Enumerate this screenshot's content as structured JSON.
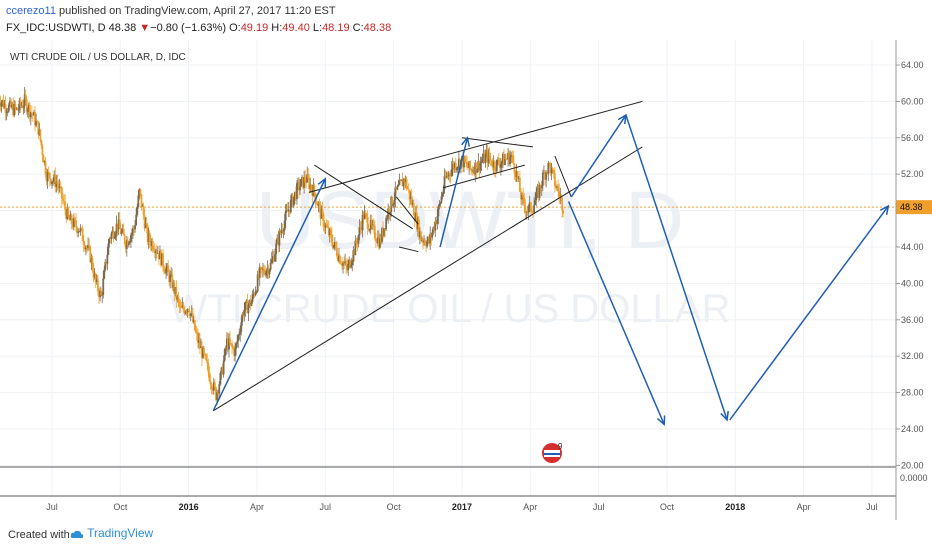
{
  "header": {
    "author": "ccerezo11",
    "published_text": " published on TradingView.com, April 27, 2017 11:20 EST",
    "symbol_line": "FX_IDC:USDWTI, D 48.38",
    "change_arrow": "▼",
    "change_text": "−0.80 (−1.63%)",
    "o_label": "O:",
    "o_val": "49.19",
    "h_label": "H:",
    "h_val": "49.40",
    "l_label": "L:",
    "l_val": "48.19",
    "c_label": "C:",
    "c_val": "48.38"
  },
  "chart_data": {
    "type": "candlestick",
    "title": "WTI CRUDE OIL / US DOLLAR, D, IDC",
    "watermark_symbol": "USDWTI, D",
    "watermark_name": "WTI CRUDE OIL / US DOLLAR",
    "ylim": [
      18,
      66
    ],
    "y_ticks": [
      "64.00",
      "60.00",
      "56.00",
      "52.00",
      "48.00",
      "44.00",
      "40.00",
      "36.00",
      "32.00",
      "28.00",
      "24.00",
      "20.00"
    ],
    "x_ticks": [
      {
        "label": "Jul",
        "t": 2015.5
      },
      {
        "label": "Oct",
        "t": 2015.75
      },
      {
        "label": "2016",
        "t": 2016.0
      },
      {
        "label": "Apr",
        "t": 2016.25
      },
      {
        "label": "Jul",
        "t": 2016.5
      },
      {
        "label": "Oct",
        "t": 2016.75
      },
      {
        "label": "2017",
        "t": 2017.0
      },
      {
        "label": "Apr",
        "t": 2017.25
      },
      {
        "label": "Jul",
        "t": 2017.5
      },
      {
        "label": "Oct",
        "t": 2017.75
      },
      {
        "label": "2018",
        "t": 2018.0
      },
      {
        "label": "Apr",
        "t": 2018.25
      },
      {
        "label": "Jul",
        "t": 2018.5
      }
    ],
    "last_price": "48.38",
    "last_value": 48.38,
    "indicator_tick": "0.0000",
    "price_path": [
      [
        2015.3,
        60.5
      ],
      [
        2015.33,
        59.5
      ],
      [
        2015.37,
        59.0
      ],
      [
        2015.4,
        60.0
      ],
      [
        2015.43,
        58.5
      ],
      [
        2015.45,
        57.0
      ],
      [
        2015.48,
        52.0
      ],
      [
        2015.52,
        51.0
      ],
      [
        2015.56,
        47.0
      ],
      [
        2015.6,
        46.0
      ],
      [
        2015.64,
        43.0
      ],
      [
        2015.66,
        40.0
      ],
      [
        2015.68,
        38.5
      ],
      [
        2015.71,
        45.0
      ],
      [
        2015.74,
        46.5
      ],
      [
        2015.77,
        44.5
      ],
      [
        2015.8,
        46.0
      ],
      [
        2015.82,
        50.0
      ],
      [
        2015.85,
        45.0
      ],
      [
        2015.88,
        44.0
      ],
      [
        2015.91,
        42.0
      ],
      [
        2015.94,
        40.0
      ],
      [
        2015.97,
        37.0
      ],
      [
        2016.0,
        37.5
      ],
      [
        2016.03,
        34.0
      ],
      [
        2016.06,
        31.5
      ],
      [
        2016.08,
        29.5
      ],
      [
        2016.1,
        27.8
      ],
      [
        2016.12,
        30.0
      ],
      [
        2016.14,
        33.5
      ],
      [
        2016.17,
        32.5
      ],
      [
        2016.2,
        37.0
      ],
      [
        2016.23,
        38.0
      ],
      [
        2016.26,
        41.0
      ],
      [
        2016.3,
        42.0
      ],
      [
        2016.34,
        46.0
      ],
      [
        2016.37,
        48.5
      ],
      [
        2016.4,
        50.5
      ],
      [
        2016.43,
        51.5
      ],
      [
        2016.46,
        50.0
      ],
      [
        2016.49,
        47.0
      ],
      [
        2016.52,
        45.0
      ],
      [
        2016.55,
        43.0
      ],
      [
        2016.58,
        41.5
      ],
      [
        2016.61,
        44.0
      ],
      [
        2016.64,
        47.5
      ],
      [
        2016.67,
        46.0
      ],
      [
        2016.7,
        44.5
      ],
      [
        2016.73,
        48.0
      ],
      [
        2016.76,
        50.0
      ],
      [
        2016.79,
        51.5
      ],
      [
        2016.82,
        48.5
      ],
      [
        2016.85,
        45.0
      ],
      [
        2016.88,
        44.5
      ],
      [
        2016.91,
        47.5
      ],
      [
        2016.94,
        51.5
      ],
      [
        2016.97,
        53.0
      ],
      [
        2017.0,
        53.5
      ],
      [
        2017.03,
        52.5
      ],
      [
        2017.06,
        53.0
      ],
      [
        2017.09,
        54.0
      ],
      [
        2017.12,
        53.0
      ],
      [
        2017.15,
        53.5
      ],
      [
        2017.18,
        54.0
      ],
      [
        2017.2,
        52.0
      ],
      [
        2017.22,
        49.0
      ],
      [
        2017.24,
        48.0
      ],
      [
        2017.26,
        48.5
      ],
      [
        2017.28,
        50.0
      ],
      [
        2017.3,
        52.0
      ],
      [
        2017.32,
        53.0
      ],
      [
        2017.34,
        51.0
      ],
      [
        2017.36,
        49.5
      ],
      [
        2017.37,
        48.4
      ]
    ],
    "drawings": {
      "black": [
        [
          [
            2016.09,
            26.0
          ],
          [
            2017.66,
            55.0
          ]
        ],
        [
          [
            2016.44,
            50.0
          ],
          [
            2017.66,
            60.0
          ]
        ],
        [
          [
            2016.46,
            53.0
          ],
          [
            2016.82,
            46.0
          ]
        ],
        [
          [
            2016.76,
            49.5
          ],
          [
            2016.84,
            46.5
          ]
        ],
        [
          [
            2016.77,
            44.0
          ],
          [
            2016.84,
            43.5
          ]
        ],
        [
          [
            2017.0,
            56.0
          ],
          [
            2017.26,
            55.0
          ]
        ],
        [
          [
            2016.93,
            50.5
          ],
          [
            2017.23,
            53.0
          ]
        ],
        [
          [
            2017.34,
            54.0
          ],
          [
            2017.4,
            49.5
          ]
        ]
      ],
      "blue": [
        [
          [
            2016.09,
            26.0
          ],
          [
            2016.5,
            51.5
          ]
        ],
        [
          [
            2016.92,
            44.0
          ],
          [
            2017.02,
            56.0
          ]
        ],
        [
          [
            2017.4,
            49.5
          ],
          [
            2017.6,
            58.5
          ]
        ],
        [
          [
            2017.39,
            49.0
          ],
          [
            2017.74,
            24.5
          ]
        ],
        [
          [
            2017.6,
            58.5
          ],
          [
            2017.97,
            25.0
          ]
        ],
        [
          [
            2017.98,
            25.0
          ],
          [
            2018.56,
            48.5
          ]
        ]
      ]
    },
    "events_badge": "9"
  },
  "footer": {
    "created_with": "Created with",
    "brand": "TradingView"
  },
  "colors": {
    "up": "#7b6a4f",
    "down": "#f0a02a",
    "blue": "#1f5fb3",
    "price_line": "#f0a02a",
    "grid": "#eef1f5"
  }
}
